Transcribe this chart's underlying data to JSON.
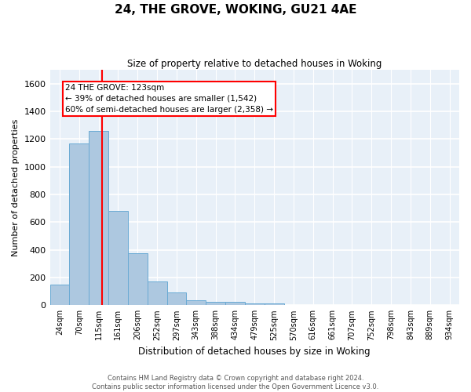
{
  "title": "24, THE GROVE, WOKING, GU21 4AE",
  "subtitle": "Size of property relative to detached houses in Woking",
  "xlabel": "Distribution of detached houses by size in Woking",
  "ylabel": "Number of detached properties",
  "bar_color": "#adc8e0",
  "bar_edge_color": "#6aaad4",
  "background_color": "#e8f0f8",
  "grid_color": "white",
  "categories": [
    "24sqm",
    "70sqm",
    "115sqm",
    "161sqm",
    "206sqm",
    "252sqm",
    "297sqm",
    "343sqm",
    "388sqm",
    "434sqm",
    "479sqm",
    "525sqm",
    "570sqm",
    "616sqm",
    "661sqm",
    "707sqm",
    "752sqm",
    "798sqm",
    "843sqm",
    "889sqm",
    "934sqm"
  ],
  "values": [
    150,
    1170,
    1260,
    680,
    375,
    170,
    90,
    35,
    25,
    22,
    15,
    15,
    0,
    0,
    0,
    0,
    0,
    0,
    0,
    0,
    0
  ],
  "ylim": [
    0,
    1700
  ],
  "yticks": [
    0,
    200,
    400,
    600,
    800,
    1000,
    1200,
    1400,
    1600
  ],
  "property_line_x": 2.17,
  "annotation_text": "24 THE GROVE: 123sqm\n← 39% of detached houses are smaller (1,542)\n60% of semi-detached houses are larger (2,358) →",
  "annotation_box_color": "white",
  "annotation_box_edge_color": "red",
  "vline_color": "red",
  "footer_line1": "Contains HM Land Registry data © Crown copyright and database right 2024.",
  "footer_line2": "Contains public sector information licensed under the Open Government Licence v3.0."
}
